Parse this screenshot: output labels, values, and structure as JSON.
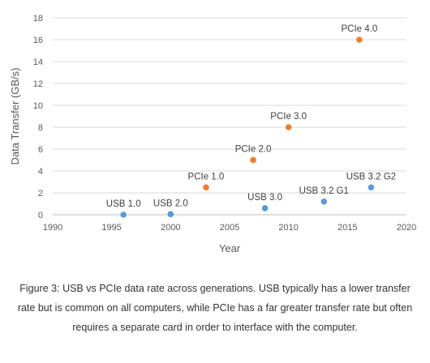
{
  "chart_data": {
    "type": "scatter",
    "xlabel": "Year",
    "ylabel": "Data Transfer (GB/s)",
    "xlim": [
      1990,
      2020
    ],
    "ylim": [
      0,
      18
    ],
    "x_ticks": [
      1990,
      1995,
      2000,
      2005,
      2010,
      2015,
      2020
    ],
    "y_ticks": [
      0,
      2,
      4,
      6,
      8,
      10,
      12,
      14,
      16,
      18
    ],
    "grid": "horizontal",
    "legend": "none",
    "series": [
      {
        "color": "#5b9bd5",
        "points": [
          {
            "x": 1996,
            "y": 0.0,
            "label": "USB 1.0"
          },
          {
            "x": 2000,
            "y": 0.05,
            "label": "USB 2.0"
          },
          {
            "x": 2008,
            "y": 0.6,
            "label": "USB 3.0"
          },
          {
            "x": 2013,
            "y": 1.2,
            "label": "USB 3.2 G1"
          },
          {
            "x": 2017,
            "y": 2.5,
            "label": "USB 3.2 G2"
          }
        ]
      },
      {
        "color": "#ed7d31",
        "points": [
          {
            "x": 2003,
            "y": 2.5,
            "label": "PCIe 1.0"
          },
          {
            "x": 2007,
            "y": 5.0,
            "label": "PCIe 2.0"
          },
          {
            "x": 2010,
            "y": 8.0,
            "label": "PCIe 3.0"
          },
          {
            "x": 2016,
            "y": 16.0,
            "label": "PCIe 4.0"
          }
        ]
      }
    ]
  },
  "caption": {
    "prefix": "Figure 3:",
    "text": " USB vs PCIe data rate across generations. USB typically has a lower transfer rate but is common on all computers, while PCIe has a far greater transfer rate but often requires a separate card in order to interface with the computer."
  }
}
